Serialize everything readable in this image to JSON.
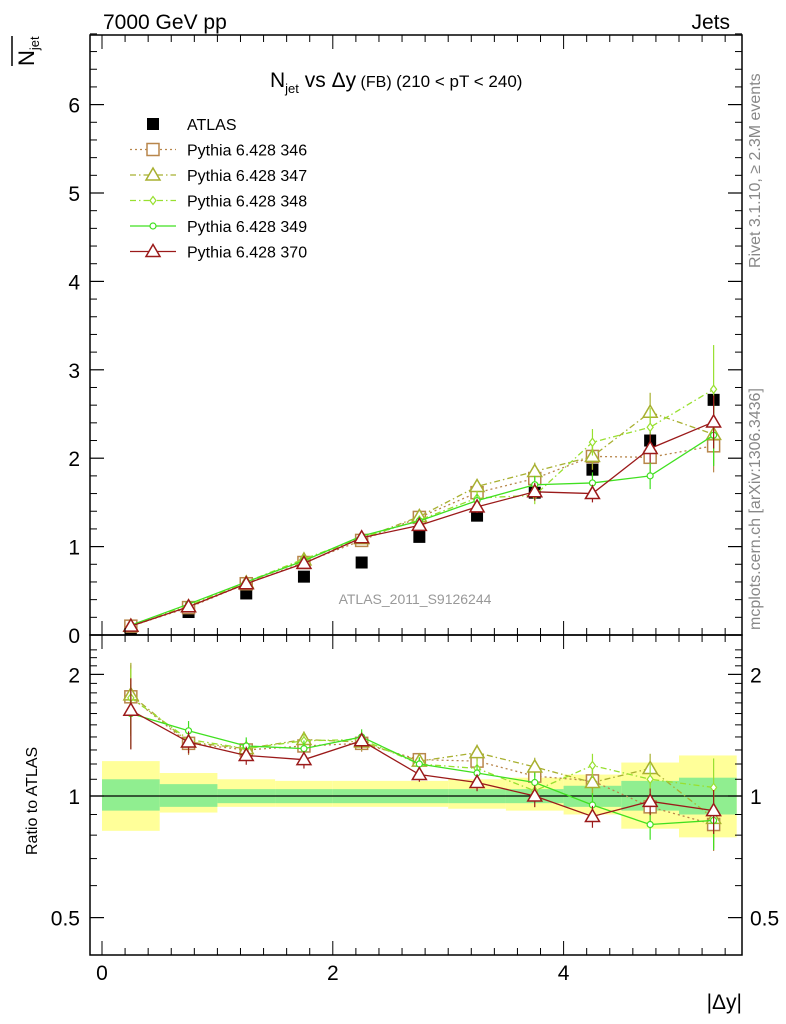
{
  "header": {
    "left": "7000 GeV pp",
    "right": "Jets"
  },
  "side_labels": {
    "rivet": "Rivet 3.1.10, ≥ 2.3M events",
    "mcplots": "mcplots.cern.ch [arXiv:1306.3436]"
  },
  "title": {
    "main": "N",
    "sub": "jet",
    "rest": " vs Δy",
    "small": " (FB) ",
    "range": "(210 < pT < 240)"
  },
  "watermark": "ATLAS_2011_S9126244",
  "chart_data": [
    {
      "type": "scatter",
      "panel": "main",
      "ylabel": "N̅jet",
      "xlabel": "|Δy|",
      "xlim": [
        -0.1,
        5.55
      ],
      "ylim": [
        0,
        6.85
      ],
      "yticks": [
        "0",
        "1",
        "2",
        "3",
        "4",
        "5",
        "6"
      ],
      "x": [
        0.25,
        0.75,
        1.25,
        1.75,
        2.25,
        2.75,
        3.25,
        3.75,
        4.25,
        4.75,
        5.3
      ],
      "series": [
        {
          "name": "ATLAS",
          "color": "#000000",
          "style": "data",
          "values": [
            0.07,
            0.26,
            0.47,
            0.66,
            0.82,
            1.11,
            1.35,
            1.61,
            1.87,
            2.2,
            2.66
          ],
          "errors": [
            0.02,
            0.02,
            0.03,
            0.03,
            0.03,
            0.03,
            0.04,
            0.06,
            0.08,
            0.12,
            0.15
          ]
        },
        {
          "name": "Pythia 6.428 346",
          "color": "#b8864b",
          "style": "dotted",
          "marker": "square",
          "values": [
            0.1,
            0.31,
            0.58,
            0.82,
            1.07,
            1.33,
            1.61,
            1.77,
            2.02,
            2.01,
            2.14
          ],
          "errors": [
            0.02,
            0.02,
            0.03,
            0.04,
            0.05,
            0.05,
            0.07,
            0.1,
            0.15,
            0.2,
            0.3
          ]
        },
        {
          "name": "Pythia 6.428 347",
          "color": "#a8b030",
          "style": "dashdot",
          "marker": "triangle",
          "values": [
            0.1,
            0.32,
            0.59,
            0.85,
            1.09,
            1.34,
            1.68,
            1.85,
            2.02,
            2.52,
            2.27
          ],
          "errors": [
            0.02,
            0.02,
            0.03,
            0.04,
            0.05,
            0.05,
            0.08,
            0.1,
            0.15,
            0.22,
            0.35
          ]
        },
        {
          "name": "Pythia 6.428 348",
          "color": "#98e030",
          "style": "dashdot",
          "marker": "diamond",
          "values": [
            0.11,
            0.33,
            0.6,
            0.86,
            1.1,
            1.3,
            1.55,
            1.58,
            2.18,
            2.35,
            2.78
          ],
          "errors": [
            0.02,
            0.02,
            0.03,
            0.04,
            0.05,
            0.05,
            0.08,
            0.1,
            0.15,
            0.22,
            0.5
          ]
        },
        {
          "name": "Pythia 6.428 349",
          "color": "#40e020",
          "style": "solid",
          "marker": "circle",
          "values": [
            0.11,
            0.35,
            0.6,
            0.84,
            1.12,
            1.29,
            1.52,
            1.7,
            1.72,
            1.8,
            2.26
          ],
          "errors": [
            0.02,
            0.02,
            0.03,
            0.04,
            0.05,
            0.05,
            0.07,
            0.1,
            0.12,
            0.15,
            0.35
          ]
        },
        {
          "name": "Pythia 6.428 370",
          "color": "#9b1a1a",
          "style": "solid",
          "marker": "triangle",
          "values": [
            0.1,
            0.32,
            0.58,
            0.81,
            1.1,
            1.24,
            1.45,
            1.62,
            1.6,
            2.11,
            2.41
          ],
          "errors": [
            0.02,
            0.02,
            0.03,
            0.04,
            0.05,
            0.05,
            0.07,
            0.1,
            0.1,
            0.16,
            0.3
          ]
        }
      ]
    },
    {
      "type": "scatter",
      "panel": "ratio",
      "ylabel": "Ratio to ATLAS",
      "xlabel": "|Δy|",
      "xlim": [
        -0.1,
        5.55
      ],
      "ylim": [
        0.4,
        2.4
      ],
      "log_scale_y": true,
      "yticks": [
        "0.5",
        "1",
        "2"
      ],
      "xticks": [
        "0",
        "2",
        "4"
      ],
      "x": [
        0.25,
        0.75,
        1.25,
        1.75,
        2.25,
        2.75,
        3.25,
        3.75,
        4.25,
        4.75,
        5.3
      ],
      "bin_edges": [
        0,
        0.5,
        1.0,
        1.5,
        2.0,
        2.5,
        3.0,
        3.5,
        4.0,
        4.5,
        5.0,
        5.5
      ],
      "uncertainty_bands": {
        "stat_low": [
          0.92,
          0.94,
          0.96,
          0.96,
          0.96,
          0.96,
          0.96,
          0.96,
          0.94,
          0.92,
          0.9
        ],
        "stat_high": [
          1.1,
          1.07,
          1.04,
          1.04,
          1.04,
          1.04,
          1.04,
          1.04,
          1.06,
          1.09,
          1.11
        ],
        "total_low": [
          0.82,
          0.91,
          0.94,
          0.94,
          0.94,
          0.94,
          0.93,
          0.92,
          0.9,
          0.83,
          0.79
        ],
        "total_high": [
          1.22,
          1.14,
          1.1,
          1.09,
          1.09,
          1.09,
          1.1,
          1.11,
          1.13,
          1.21,
          1.26
        ],
        "stat_color": "#90ee90",
        "total_color": "#ffff99"
      },
      "series": [
        {
          "name": "Pythia 6.428 346",
          "values": [
            1.76,
            1.35,
            1.3,
            1.33,
            1.35,
            1.23,
            1.22,
            1.12,
            1.09,
            0.94,
            0.85
          ]
        },
        {
          "name": "Pythia 6.428 347",
          "values": [
            1.78,
            1.36,
            1.31,
            1.38,
            1.36,
            1.22,
            1.28,
            1.18,
            1.08,
            1.17,
            0.88
          ]
        },
        {
          "name": "Pythia 6.428 348",
          "values": [
            1.75,
            1.38,
            1.31,
            1.37,
            1.38,
            1.2,
            1.17,
            1.03,
            1.19,
            1.1,
            1.05
          ]
        },
        {
          "name": "Pythia 6.428 349",
          "values": [
            1.6,
            1.45,
            1.33,
            1.31,
            1.4,
            1.2,
            1.14,
            1.08,
            0.95,
            0.85,
            0.87
          ]
        },
        {
          "name": "Pythia 6.428 370",
          "values": [
            1.63,
            1.36,
            1.26,
            1.23,
            1.37,
            1.13,
            1.08,
            1.0,
            0.89,
            0.97,
            0.92
          ]
        }
      ]
    }
  ]
}
